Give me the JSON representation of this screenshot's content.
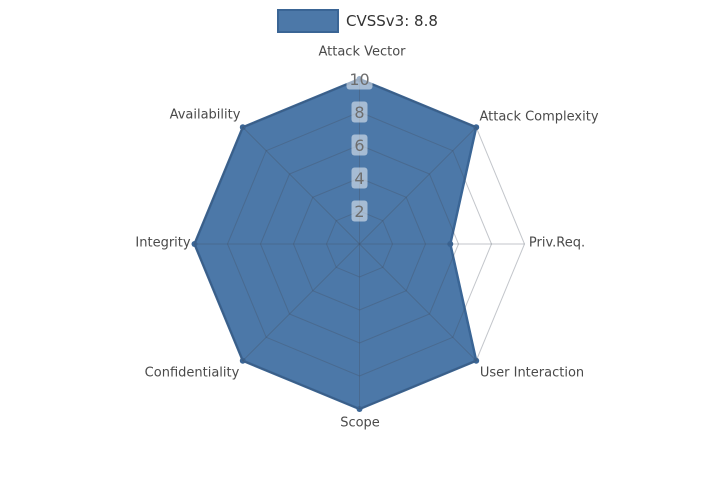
{
  "legend": {
    "label": "CVSSv3: 8.8",
    "swatch_color": "#4C78A8",
    "swatch_border_color": "#3A6595"
  },
  "chart_data": {
    "type": "radar",
    "categories": [
      "Attack Vector",
      "Attack Complexity",
      "Priv.Req.",
      "User Interaction",
      "Scope",
      "Confidentiality",
      "Integrity",
      "Availability"
    ],
    "series": [
      {
        "name": "CVSSv3: 8.8",
        "values": [
          10,
          10,
          5.5,
          10,
          10,
          10,
          10,
          10
        ],
        "fill_color": "#4C78A8",
        "edge_color": "#3A6595"
      }
    ],
    "radial_ticks": [
      "2",
      "4",
      "6",
      "8",
      "10"
    ],
    "rlim": [
      0,
      10
    ],
    "grid": true,
    "grid_shape": "polygon",
    "grid_color": "rgba(68,78,94,0.32)",
    "tick_box_color": "rgba(255,255,255,0.5)",
    "tick_text_color": "#6e6e6e",
    "axis_label_color": "#4a4a4a",
    "legend_position": "top",
    "background_color": "#ffffff"
  }
}
